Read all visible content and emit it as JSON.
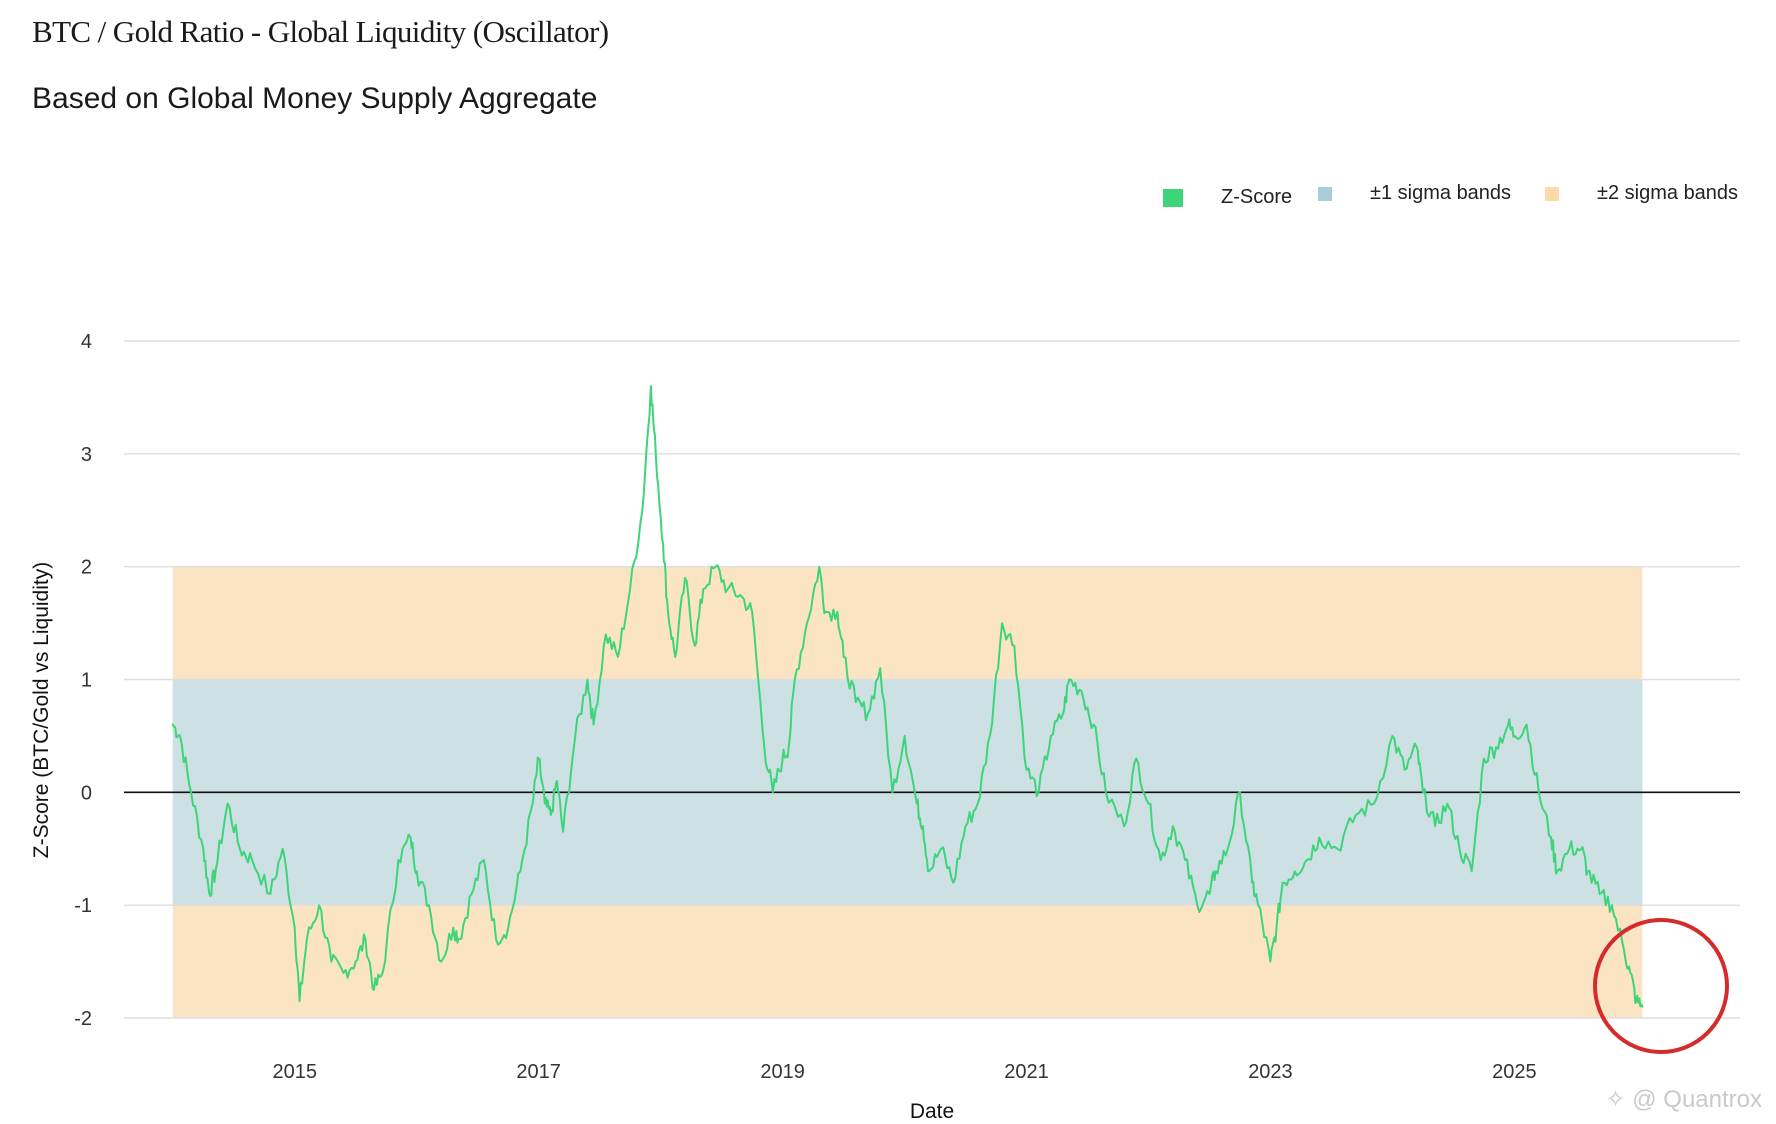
{
  "header": {
    "title": "BTC / Gold Ratio - Global Liquidity (Oscillator)",
    "subtitle": "Based on Global Money Supply Aggregate"
  },
  "legend": [
    {
      "label": "Z-Score",
      "color": "#3dd47a"
    },
    {
      "label": "±1 sigma bands",
      "color": "#a9cdd8"
    },
    {
      "label": "±2 sigma bands",
      "color": "#fbd9a8"
    }
  ],
  "watermark": "@ Quantrox",
  "chart_data": {
    "type": "line",
    "title": "BTC / Gold Ratio - Global Liquidity (Oscillator)",
    "subtitle": "Based on Global Money Supply Aggregate",
    "xlabel": "Date",
    "ylabel": "Z-Score (BTC/Gold vs Liquidity)",
    "ylim": [
      -2,
      4
    ],
    "yticks": [
      4,
      3,
      2,
      1,
      0,
      -1,
      -2
    ],
    "xlim": [
      2013.6,
      2026.85
    ],
    "xticks": [
      "2015",
      "2017",
      "2019",
      "2021",
      "2023",
      "2025"
    ],
    "grid": true,
    "legend_position": "top-right",
    "bands": [
      {
        "name": "±2 sigma bands",
        "from": -2,
        "to": 2,
        "x_start": 2014.0,
        "x_end": 2026.05,
        "color": "#fbe4c4"
      },
      {
        "name": "±1 sigma bands",
        "from": -1,
        "to": 1,
        "x_start": 2014.0,
        "x_end": 2026.05,
        "color": "#cde0e3"
      }
    ],
    "zero_line": 0,
    "series": [
      {
        "name": "Z-Score",
        "color": "#3dd47a",
        "x": [
          2014.0,
          2014.06,
          2014.15,
          2014.25,
          2014.3,
          2014.35,
          2014.45,
          2014.55,
          2014.65,
          2014.8,
          2014.9,
          2015.0,
          2015.04,
          2015.1,
          2015.2,
          2015.3,
          2015.4,
          2015.5,
          2015.58,
          2015.65,
          2015.72,
          2015.85,
          2015.95,
          2016.0,
          2016.1,
          2016.2,
          2016.3,
          2016.35,
          2016.45,
          2016.55,
          2016.65,
          2016.75,
          2016.85,
          2016.95,
          2017.0,
          2017.05,
          2017.1,
          2017.15,
          2017.2,
          2017.3,
          2017.4,
          2017.45,
          2017.55,
          2017.65,
          2017.75,
          2017.85,
          2017.92,
          2017.96,
          2018.02,
          2018.06,
          2018.12,
          2018.2,
          2018.28,
          2018.35,
          2018.45,
          2018.55,
          2018.65,
          2018.75,
          2018.85,
          2018.92,
          2019.0,
          2019.05,
          2019.1,
          2019.2,
          2019.3,
          2019.35,
          2019.45,
          2019.5,
          2019.6,
          2019.7,
          2019.8,
          2019.9,
          2020.0,
          2020.1,
          2020.15,
          2020.2,
          2020.3,
          2020.4,
          2020.5,
          2020.6,
          2020.7,
          2020.8,
          2020.9,
          2021.0,
          2021.1,
          2021.2,
          2021.3,
          2021.35,
          2021.45,
          2021.55,
          2021.65,
          2021.8,
          2021.9,
          2022.0,
          2022.1,
          2022.2,
          2022.3,
          2022.4,
          2022.5,
          2022.55,
          2022.65,
          2022.75,
          2022.85,
          2022.9,
          2023.0,
          2023.05,
          2023.1,
          2023.2,
          2023.3,
          2023.4,
          2023.55,
          2023.7,
          2023.85,
          2024.0,
          2024.1,
          2024.2,
          2024.25,
          2024.35,
          2024.45,
          2024.55,
          2024.65,
          2024.75,
          2024.85,
          2024.95,
          2025.0,
          2025.1,
          2025.2,
          2025.3,
          2025.35,
          2025.45,
          2025.55,
          2025.6,
          2025.7,
          2025.8,
          2025.9,
          2025.95,
          2026.0,
          2026.05
        ],
        "values": [
          0.6,
          0.5,
          0.0,
          -0.5,
          -0.9,
          -0.7,
          -0.1,
          -0.5,
          -0.6,
          -0.9,
          -0.5,
          -1.2,
          -1.85,
          -1.3,
          -1.0,
          -1.5,
          -1.6,
          -1.5,
          -1.3,
          -1.75,
          -1.6,
          -0.6,
          -0.4,
          -0.7,
          -1.0,
          -1.5,
          -1.2,
          -1.3,
          -0.9,
          -0.6,
          -1.3,
          -1.2,
          -0.7,
          -0.1,
          0.3,
          -0.1,
          -0.2,
          0.1,
          -0.35,
          0.5,
          1.0,
          0.6,
          1.4,
          1.2,
          1.8,
          2.5,
          3.6,
          3.0,
          2.2,
          1.6,
          1.2,
          1.9,
          1.3,
          1.8,
          2.0,
          1.8,
          1.75,
          1.6,
          0.4,
          0.0,
          0.3,
          0.4,
          1.0,
          1.5,
          2.0,
          1.6,
          1.6,
          1.2,
          0.8,
          0.7,
          1.1,
          0.0,
          0.5,
          -0.1,
          -0.3,
          -0.7,
          -0.5,
          -0.8,
          -0.3,
          -0.1,
          0.5,
          1.5,
          1.3,
          0.2,
          0.0,
          0.5,
          0.7,
          1.0,
          0.9,
          0.6,
          0.0,
          -0.3,
          0.3,
          -0.1,
          -0.6,
          -0.3,
          -0.6,
          -1.0,
          -0.9,
          -0.7,
          -0.5,
          0.0,
          -0.8,
          -1.0,
          -1.5,
          -1.2,
          -0.8,
          -0.7,
          -0.6,
          -0.4,
          -0.5,
          -0.2,
          -0.1,
          0.5,
          0.2,
          0.4,
          0.0,
          -0.3,
          -0.1,
          -0.5,
          -0.7,
          0.3,
          0.4,
          0.6,
          0.5,
          0.6,
          0.0,
          -0.4,
          -0.7,
          -0.5,
          -0.5,
          -0.7,
          -0.9,
          -1.0,
          -1.4,
          -1.6,
          -1.85,
          -1.9
        ]
      }
    ]
  }
}
